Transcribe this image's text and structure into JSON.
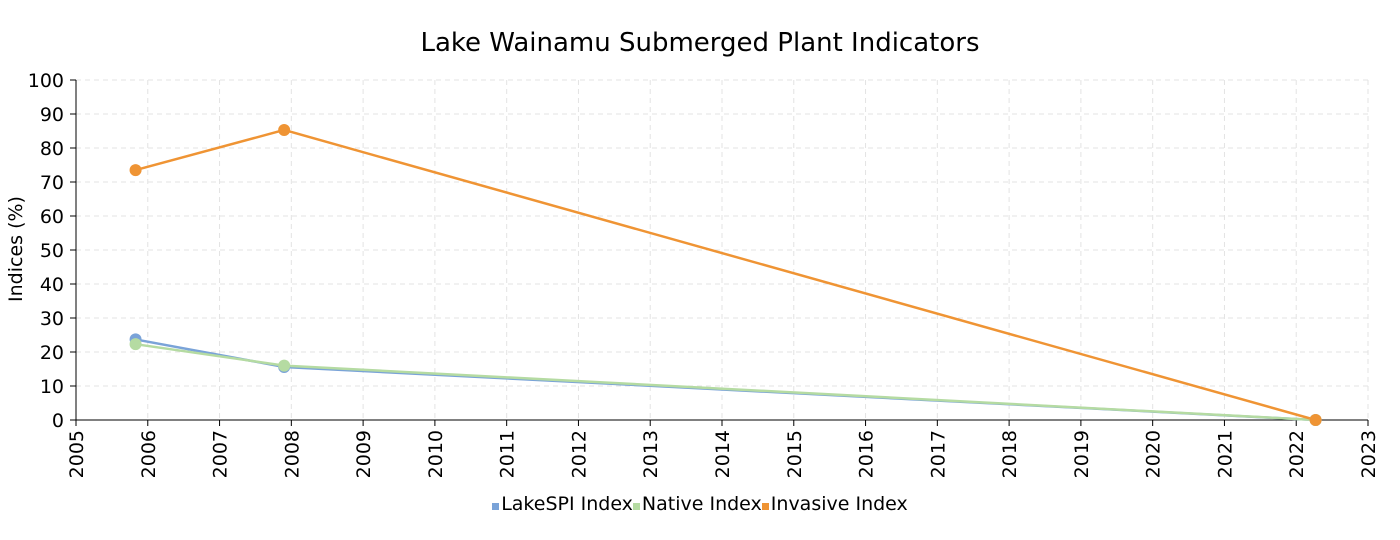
{
  "chart_data": {
    "type": "line",
    "title": "Lake Wainamu Submerged Plant Indicators",
    "xlabel": "",
    "ylabel": "Indices (%)",
    "xlim": [
      2005,
      2023
    ],
    "ylim": [
      0,
      100
    ],
    "xticks": [
      "2005",
      "2006",
      "2007",
      "2008",
      "2009",
      "2010",
      "2011",
      "2012",
      "2013",
      "2014",
      "2015",
      "2016",
      "2017",
      "2018",
      "2019",
      "2020",
      "2021",
      "2022",
      "2023"
    ],
    "yticks": [
      "0",
      "10",
      "20",
      "30",
      "40",
      "50",
      "60",
      "70",
      "80",
      "90",
      "100"
    ],
    "grid": true,
    "legend_position": "bottom",
    "x": [
      "2005-11",
      "2007-12",
      "2022-04"
    ],
    "x_numeric": [
      2005.83,
      2007.9,
      2022.27
    ],
    "series": [
      {
        "name": "LakeSPI Index",
        "color": "#7aa3d8",
        "values": [
          23.7,
          15.6,
          0
        ]
      },
      {
        "name": "Native Index",
        "color": "#b5dba2",
        "values": [
          22.3,
          16.0,
          0
        ]
      },
      {
        "name": "Invasive Index",
        "color": "#ef9434",
        "values": [
          73.5,
          85.3,
          0
        ]
      }
    ]
  }
}
